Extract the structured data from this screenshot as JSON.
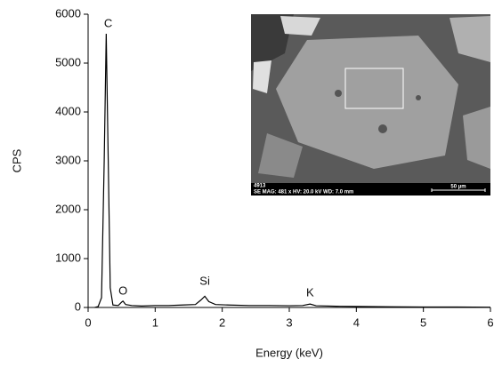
{
  "chart_data": {
    "type": "line",
    "x_label": "Energy (keV)",
    "y_label": "CPS",
    "x": [
      0.1,
      0.15,
      0.2,
      0.24,
      0.27,
      0.3,
      0.33,
      0.37,
      0.45,
      0.5,
      0.52,
      0.56,
      0.65,
      0.8,
      1.0,
      1.2,
      1.4,
      1.6,
      1.68,
      1.74,
      1.8,
      1.9,
      2.1,
      2.4,
      2.7,
      3.0,
      3.2,
      3.31,
      3.4,
      3.7,
      4.0,
      4.5,
      5.0,
      5.5,
      6.0
    ],
    "values": [
      0,
      20,
      200,
      3000,
      5600,
      3000,
      400,
      50,
      40,
      110,
      130,
      60,
      40,
      30,
      40,
      40,
      50,
      60,
      150,
      230,
      120,
      60,
      50,
      40,
      40,
      35,
      40,
      70,
      35,
      25,
      20,
      15,
      10,
      10,
      5
    ],
    "color": "#000000",
    "xlim": [
      0,
      6
    ],
    "xticks": [
      0,
      1,
      2,
      3,
      4,
      5,
      6
    ],
    "ylim": [
      0,
      6000
    ],
    "yticks": [
      0,
      1000,
      2000,
      3000,
      4000,
      5000,
      6000
    ],
    "annotations": [
      {
        "text": "C",
        "x": 0.3,
        "y": 5800
      },
      {
        "text": "O",
        "x": 0.52,
        "y": 330
      },
      {
        "text": "Si",
        "x": 1.74,
        "y": 530
      },
      {
        "text": "K",
        "x": 3.31,
        "y": 290
      }
    ],
    "inset": {
      "id": "4913",
      "info": "SE  MAG: 481 x  HV: 20.0 kV  WD: 7.0 mm",
      "scale": "50 µm"
    }
  }
}
